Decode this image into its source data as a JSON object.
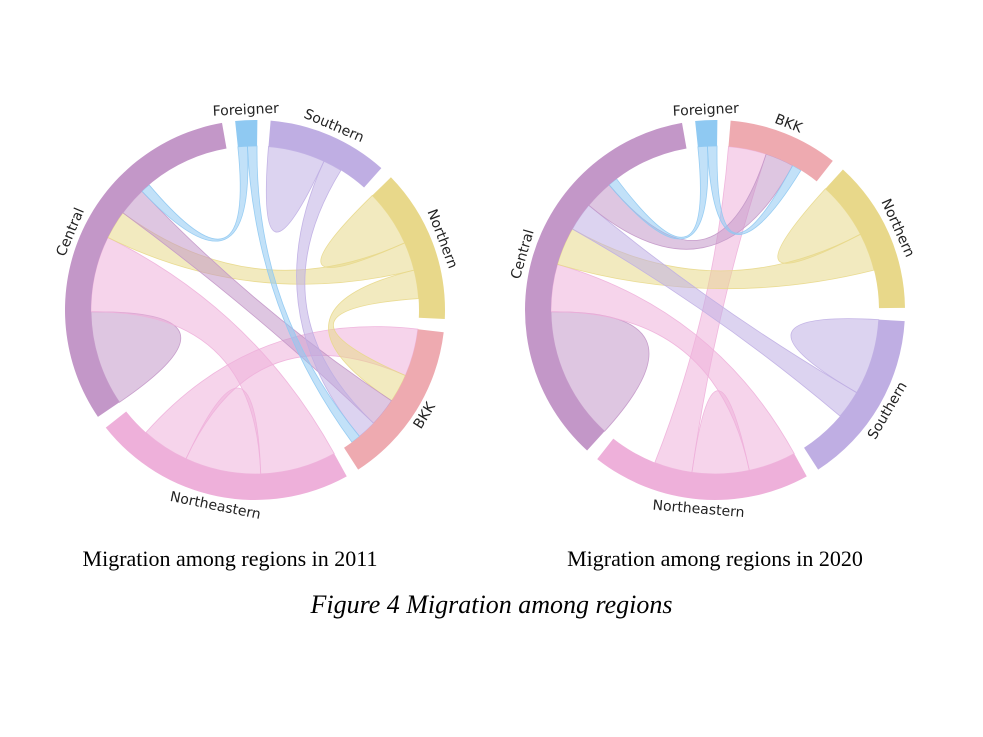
{
  "charts": [
    {
      "id": "2011",
      "caption": "Migration among regions in 2011",
      "groups": [
        {
          "name": "Foreigner",
          "color": "#8fc9f2",
          "size": 2
        },
        {
          "name": "Southern",
          "color": "#bfaee3",
          "size": 11
        },
        {
          "name": "Northern",
          "color": "#e8d88a",
          "size": 14
        },
        {
          "name": "BKK",
          "color": "#eeaab0",
          "size": 15
        },
        {
          "name": "Northeastern",
          "color": "#eeb0da",
          "size": 24
        },
        {
          "name": "Central",
          "color": "#c397c8",
          "size": 34
        }
      ],
      "flows": [
        {
          "from": "Central",
          "to": "Central",
          "value": 10
        },
        {
          "from": "Northeastern",
          "to": "Central",
          "value": 8
        },
        {
          "from": "Northeastern",
          "to": "Northeastern",
          "value": 8
        },
        {
          "from": "Northeastern",
          "to": "BKK",
          "value": 5
        },
        {
          "from": "Northern",
          "to": "Northern",
          "value": 6
        },
        {
          "from": "Northern",
          "to": "Central",
          "value": 3
        },
        {
          "from": "Northern",
          "to": "BKK",
          "value": 3
        },
        {
          "from": "Southern",
          "to": "Southern",
          "value": 6
        },
        {
          "from": "Central",
          "to": "BKK",
          "value": 3
        },
        {
          "from": "Southern",
          "to": "BKK",
          "value": 2
        },
        {
          "from": "Foreigner",
          "to": "Central",
          "value": 1
        },
        {
          "from": "Foreigner",
          "to": "BKK",
          "value": 1
        }
      ]
    },
    {
      "id": "2020",
      "caption": "Migration among regions in 2020",
      "groups": [
        {
          "name": "Foreigner",
          "color": "#8fc9f2",
          "size": 2
        },
        {
          "name": "BKK",
          "color": "#eeaab0",
          "size": 10
        },
        {
          "name": "Northern",
          "color": "#e8d88a",
          "size": 14
        },
        {
          "name": "Southern",
          "color": "#bfaee3",
          "size": 16
        },
        {
          "name": "Northeastern",
          "color": "#eeb0da",
          "size": 20
        },
        {
          "name": "Central",
          "color": "#c397c8",
          "size": 38
        }
      ],
      "flows": [
        {
          "from": "Central",
          "to": "Central",
          "value": 14
        },
        {
          "from": "Northeastern",
          "to": "Central",
          "value": 5
        },
        {
          "from": "Northeastern",
          "to": "Northeastern",
          "value": 6
        },
        {
          "from": "Northeastern",
          "to": "BKK",
          "value": 4
        },
        {
          "from": "Northern",
          "to": "Northern",
          "value": 6
        },
        {
          "from": "Northern",
          "to": "Central",
          "value": 4
        },
        {
          "from": "Southern",
          "to": "Southern",
          "value": 8
        },
        {
          "from": "Southern",
          "to": "Central",
          "value": 3
        },
        {
          "from": "Central",
          "to": "BKK",
          "value": 3
        },
        {
          "from": "Foreigner",
          "to": "Central",
          "value": 1
        },
        {
          "from": "Foreigner",
          "to": "BKK",
          "value": 1
        }
      ]
    }
  ],
  "figure_title": "Figure 4  Migration among regions"
}
